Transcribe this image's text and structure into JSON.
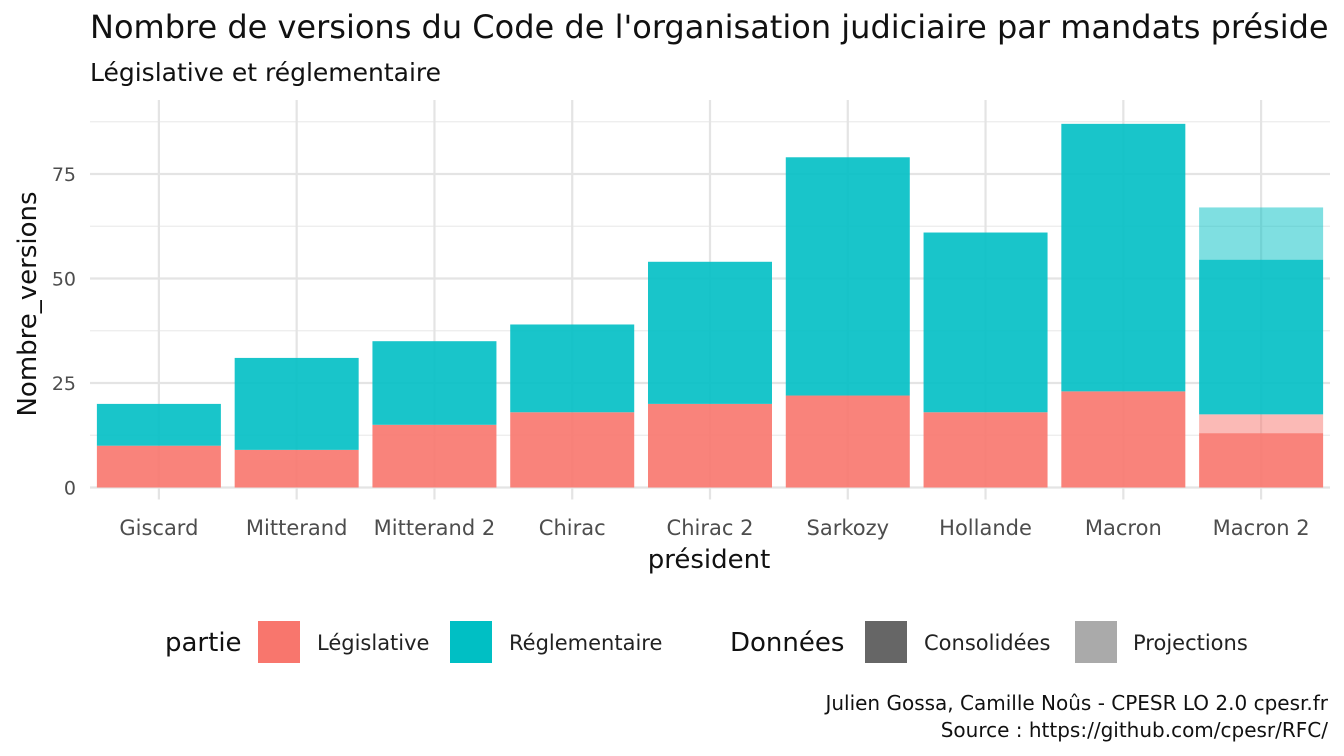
{
  "title": "Nombre de versions du Code de l'organisation judiciaire par mandats préside",
  "subtitle": "Législative et réglementaire",
  "caption": {
    "line1": "Julien Gossa, Camille Noûs - CPESR LO 2.0 cpesr.fr",
    "line2": "Source : https://github.com/cpesr/RFC/"
  },
  "legend": {
    "partie_title": "partie",
    "partie_items": [
      {
        "label": "Législative",
        "color": "#F8766D"
      },
      {
        "label": "Réglementaire",
        "color": "#00BFC4"
      }
    ],
    "donnees_title": "Données",
    "donnees_items": [
      {
        "label": "Consolidées",
        "color": "#666666"
      },
      {
        "label": "Projections",
        "color": "#AAAAAA"
      }
    ]
  },
  "chart_data": {
    "type": "bar",
    "stacked": true,
    "xlabel": "président",
    "ylabel": "Nombre_versions",
    "ylim": [
      0,
      90
    ],
    "yticks": [
      0,
      25,
      50,
      75
    ],
    "grid": true,
    "legend_position": "bottom",
    "categories": [
      "Giscard",
      "Mitterand",
      "Mitterand 2",
      "Chirac",
      "Chirac 2",
      "Sarkozy",
      "Hollande",
      "Macron",
      "Macron 2"
    ],
    "series": [
      {
        "name": "Législative",
        "donnees": "Consolidées",
        "color": "#F8766D",
        "values": [
          10,
          9,
          15,
          18,
          20,
          22,
          18,
          23,
          13
        ]
      },
      {
        "name": "Législative",
        "donnees": "Projections",
        "color": "#F8766D",
        "values": [
          0,
          0,
          0,
          0,
          0,
          0,
          0,
          0,
          4.5
        ]
      },
      {
        "name": "Réglementaire",
        "donnees": "Consolidées",
        "color": "#00BFC4",
        "values": [
          10,
          22,
          20,
          21,
          34,
          57,
          43,
          64,
          37
        ]
      },
      {
        "name": "Réglementaire",
        "donnees": "Projections",
        "color": "#00BFC4",
        "values": [
          0,
          0,
          0,
          0,
          0,
          0,
          0,
          0,
          12.5
        ]
      }
    ]
  }
}
